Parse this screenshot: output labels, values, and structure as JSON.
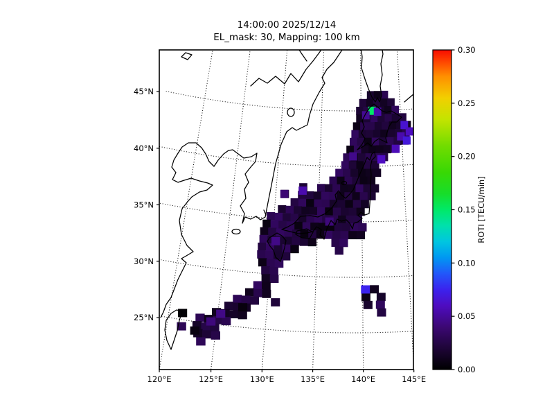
{
  "figure": {
    "title_line1": "14:00:00 2025/12/14",
    "title_line2": "EL_mask: 30, Mapping: 100 km"
  },
  "chart_data": {
    "type": "heatmap",
    "title": "14:00:00 2025/12/14",
    "subtitle": "EL_mask: 30, Mapping: 100 km",
    "region": "Japan and surrounding East Asia",
    "x_axis": {
      "tick_values": [
        120,
        125,
        130,
        135,
        140,
        145
      ],
      "tick_labels": [
        "120°E",
        "125°E",
        "130°E",
        "135°E",
        "140°E",
        "145°E"
      ]
    },
    "y_axis": {
      "tick_values": [
        45,
        40,
        35,
        30,
        25
      ],
      "tick_labels": [
        "45°N",
        "40°N",
        "35°N",
        "30°N",
        "25°N"
      ]
    },
    "grid": {
      "style": "dotted",
      "color": "#000000"
    },
    "colorbar": {
      "label": "ROTI [TECU/min]",
      "vmin": 0.0,
      "vmax": 0.3,
      "tick_labels": [
        "0.00",
        "0.05",
        "0.10",
        "0.15",
        "0.20",
        "0.25",
        "0.30"
      ],
      "colormap_stops": [
        [
          0.0,
          "#000000"
        ],
        [
          0.02,
          "#1e0538"
        ],
        [
          0.04,
          "#3c0873"
        ],
        [
          0.06,
          "#4e0cc0"
        ],
        [
          0.075,
          "#3b22ee"
        ],
        [
          0.09,
          "#2257fa"
        ],
        [
          0.105,
          "#0097f2"
        ],
        [
          0.12,
          "#00c6e0"
        ],
        [
          0.135,
          "#00e0ac"
        ],
        [
          0.15,
          "#00e968"
        ],
        [
          0.165,
          "#17dd2a"
        ],
        [
          0.185,
          "#38d804"
        ],
        [
          0.21,
          "#72dc00"
        ],
        [
          0.235,
          "#c4e400"
        ],
        [
          0.255,
          "#f2cf00"
        ],
        [
          0.275,
          "#ff9000"
        ],
        [
          0.288,
          "#ff4a00"
        ],
        [
          0.3,
          "#f80c00"
        ]
      ]
    },
    "cells": {
      "value_unit": "TECU/min",
      "lon_step": 0.9,
      "lat_step": 0.7,
      "base_value": 0.021,
      "jitter_amp": 0.014,
      "rows": [
        {
          "lat": 46.4,
          "segs": [
            [
              140.8,
              143.4
            ]
          ]
        },
        {
          "lat": 45.7,
          "segs": [
            [
              139.8,
              144.4
            ]
          ]
        },
        {
          "lat": 45.0,
          "segs": [
            [
              139.4,
              145.2
            ]
          ]
        },
        {
          "lat": 44.3,
          "segs": [
            [
              139.4,
              146.1
            ]
          ]
        },
        {
          "lat": 43.6,
          "segs": [
            [
              139.0,
              146.3
            ]
          ]
        },
        {
          "lat": 42.9,
          "segs": [
            [
              138.8,
              146.3
            ]
          ]
        },
        {
          "lat": 42.2,
          "segs": [
            [
              138.6,
              145.7
            ]
          ]
        },
        {
          "lat": 41.5,
          "segs": [
            [
              138.2,
              144.7
            ]
          ]
        },
        {
          "lat": 40.8,
          "segs": [
            [
              137.8,
              143.3
            ]
          ]
        },
        {
          "lat": 40.1,
          "segs": [
            [
              137.6,
              142.5
            ]
          ]
        },
        {
          "lat": 39.4,
          "segs": [
            [
              136.9,
              142.1
            ]
          ]
        },
        {
          "lat": 38.7,
          "segs": [
            [
              136.2,
              141.9
            ]
          ]
        },
        {
          "lat": 38.0,
          "segs": [
            [
              132.7,
              133.7
            ],
            [
              134.8,
              141.7
            ]
          ]
        },
        {
          "lat": 37.3,
          "segs": [
            [
              130.6,
              131.9
            ],
            [
              132.6,
              141.3
            ]
          ]
        },
        {
          "lat": 36.6,
          "segs": [
            [
              131.8,
              141.1
            ]
          ]
        },
        {
          "lat": 35.9,
          "segs": [
            [
              130.4,
              140.7
            ]
          ]
        },
        {
          "lat": 35.2,
          "segs": [
            [
              129.2,
              140.4
            ]
          ]
        },
        {
          "lat": 34.5,
          "segs": [
            [
              128.8,
              140.1
            ]
          ]
        },
        {
          "lat": 33.8,
          "segs": [
            [
              128.6,
              139.9
            ]
          ]
        },
        {
          "lat": 33.1,
          "segs": [
            [
              128.6,
              134.5
            ],
            [
              136.6,
              138.1
            ]
          ]
        },
        {
          "lat": 32.4,
          "segs": [
            [
              128.5,
              133.3
            ],
            [
              137.0,
              137.9
            ]
          ]
        },
        {
          "lat": 31.7,
          "segs": [
            [
              128.5,
              132.5
            ]
          ]
        },
        {
          "lat": 31.0,
          "segs": [
            [
              128.7,
              131.7
            ]
          ]
        },
        {
          "lat": 30.3,
          "segs": [
            [
              129.1,
              131.3
            ]
          ]
        },
        {
          "lat": 29.6,
          "segs": [
            [
              129.2,
              130.9
            ]
          ]
        },
        {
          "lat": 28.9,
          "segs": [
            [
              128.4,
              130.3
            ],
            [
              139.9,
              141.3
            ]
          ]
        },
        {
          "lat": 28.2,
          "segs": [
            [
              127.6,
              129.9
            ],
            [
              139.9,
              140.9
            ],
            [
              141.5,
              142.5
            ]
          ]
        },
        {
          "lat": 27.5,
          "segs": [
            [
              126.4,
              129.1
            ],
            [
              130.4,
              131.3
            ],
            [
              140.1,
              140.9
            ],
            [
              141.4,
              142.7
            ]
          ]
        },
        {
          "lat": 26.8,
          "segs": [
            [
              125.6,
              128.3
            ],
            [
              141.5,
              142.7
            ]
          ]
        },
        {
          "lat": 26.1,
          "segs": [
            [
              124.4,
              127.7
            ]
          ]
        },
        {
          "lat": 25.4,
          "segs": [
            [
              122.8,
              126.7
            ]
          ]
        },
        {
          "lat": 24.7,
          "segs": [
            [
              122.6,
              125.7
            ]
          ]
        },
        {
          "lat": 24.0,
          "segs": [
            [
              122.8,
              125.1
            ]
          ]
        },
        {
          "lat": 23.3,
          "segs": [
            [
              123.2,
              124.3
            ]
          ]
        }
      ],
      "highlight_cells": [
        [
          141.4,
          45.0,
          0.15
        ],
        [
          142.1,
          44.9,
          0.055
        ],
        [
          140.6,
          44.6,
          0.048
        ],
        [
          145.4,
          43.6,
          0.065
        ],
        [
          146.0,
          43.0,
          0.06
        ],
        [
          144.9,
          42.6,
          0.055
        ],
        [
          145.6,
          42.2,
          0.068
        ],
        [
          144.2,
          41.5,
          0.058
        ],
        [
          142.4,
          40.6,
          0.06
        ],
        [
          139.0,
          40.9,
          0.046
        ],
        [
          133.1,
          37.7,
          0.055
        ],
        [
          131.0,
          37.3,
          0.04
        ],
        [
          136.3,
          35.0,
          0.042
        ],
        [
          130.4,
          33.0,
          0.045
        ],
        [
          140.3,
          28.9,
          0.075
        ],
        [
          125.3,
          26.0,
          0.045
        ],
        [
          124.4,
          25.2,
          0.042
        ],
        [
          121.4,
          25.6,
          0.002
        ],
        [
          127.5,
          26.8,
          0.005
        ],
        [
          122.9,
          24.2,
          0.006
        ],
        [
          121.5,
          24.4,
          0.03
        ]
      ]
    }
  }
}
